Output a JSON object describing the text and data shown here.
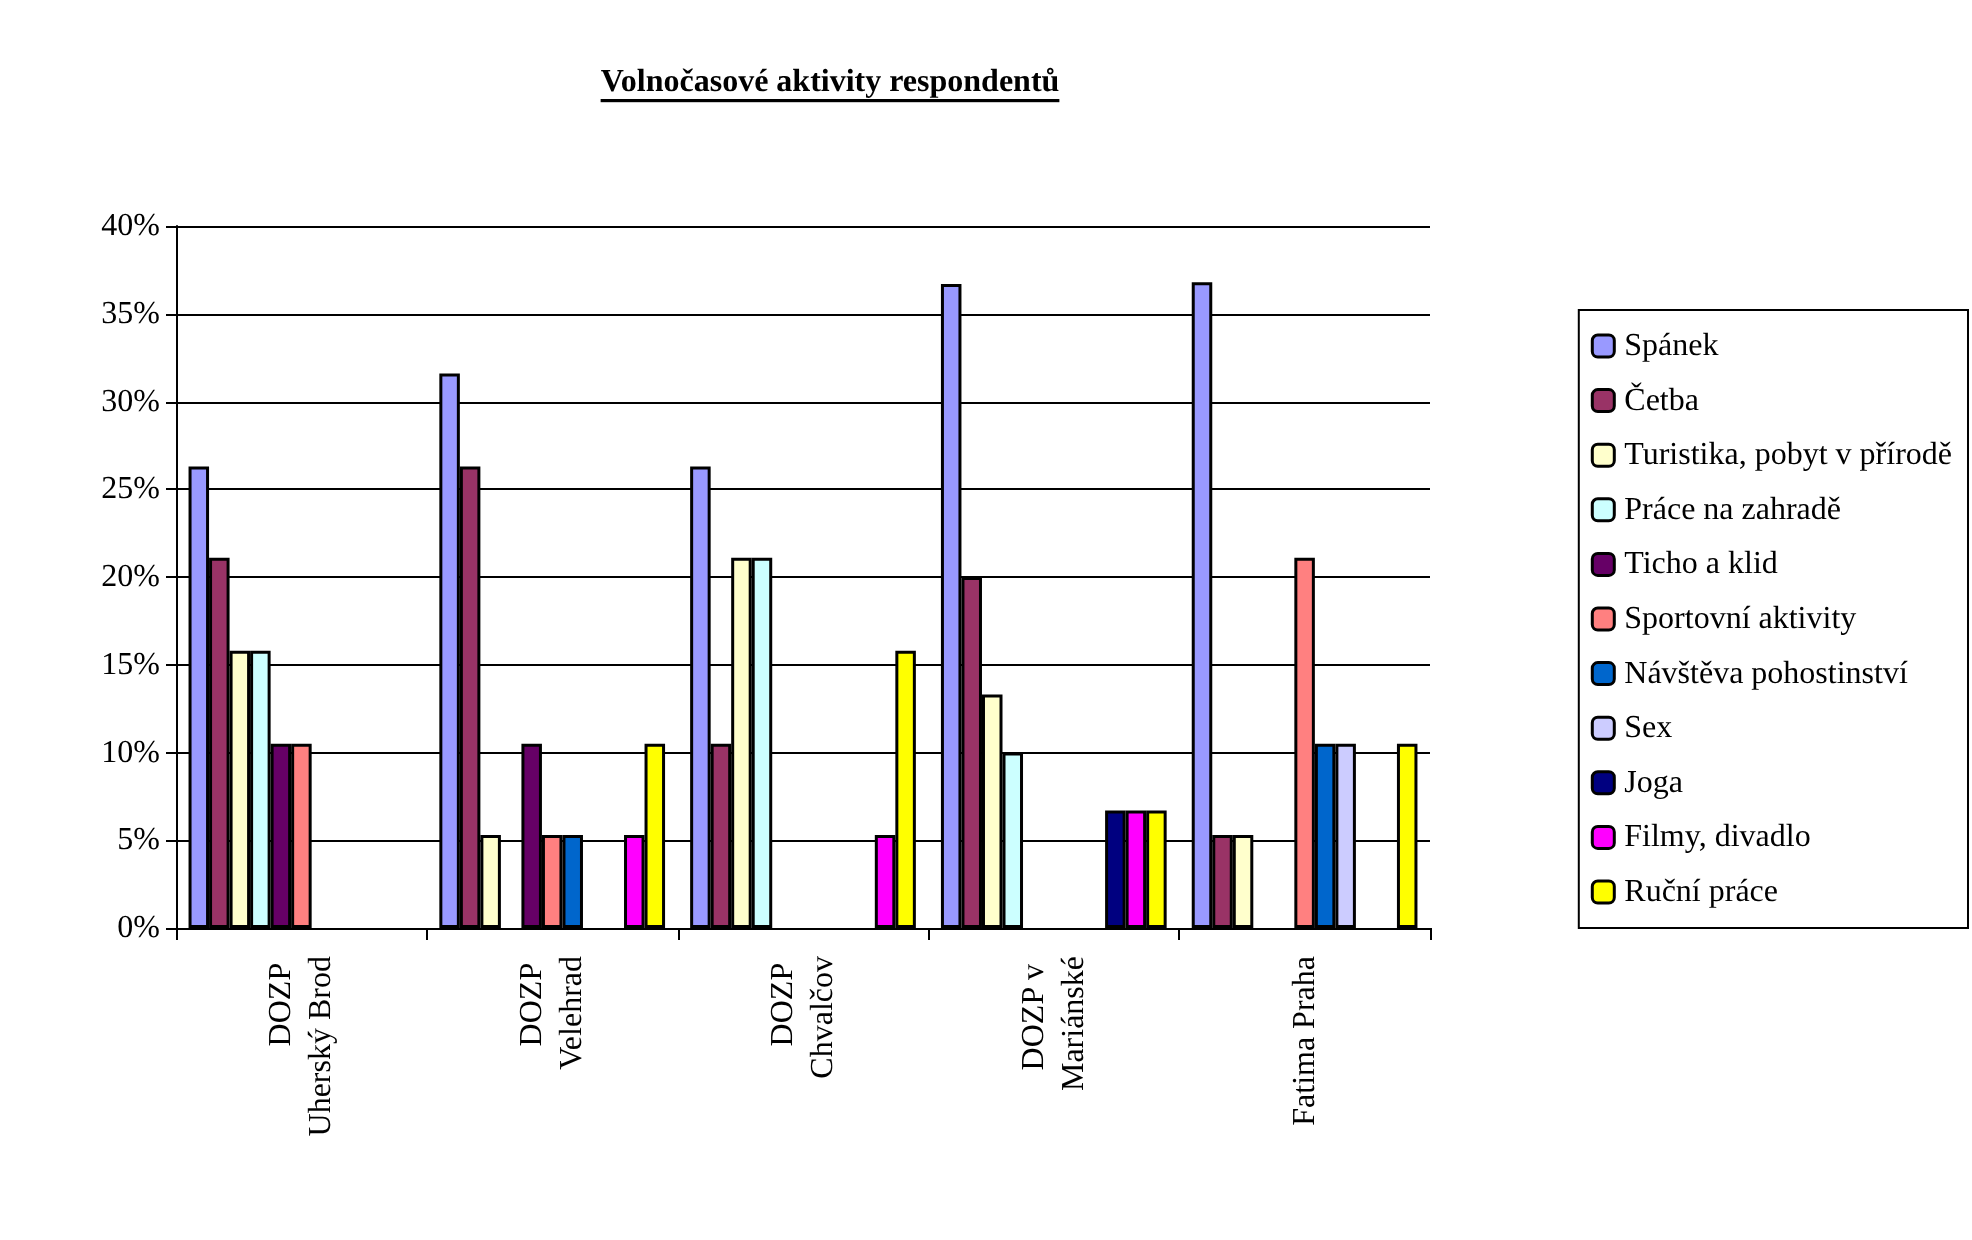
{
  "chart_data": {
    "type": "bar",
    "title": "Volnočasové aktivity respondentů",
    "categories": [
      "DOZP Uherský Brod",
      "DOZP Velehrad",
      "DOZP Chvalčov",
      "DOZP v Mariánské",
      "Fatima Praha"
    ],
    "series": [
      {
        "name": "Spánek",
        "color": "#9999ff",
        "values": [
          26.3,
          31.6,
          26.3,
          36.7,
          36.8
        ]
      },
      {
        "name": "Četba",
        "color": "#993366",
        "values": [
          21.1,
          26.3,
          10.5,
          20,
          5.3
        ]
      },
      {
        "name": "Turistika, pobyt v přírodě",
        "color": "#ffffcc",
        "values": [
          15.8,
          5.3,
          21.1,
          13.3,
          5.3
        ]
      },
      {
        "name": "Práce na zahradě",
        "color": "#ccffff",
        "values": [
          15.8,
          null,
          21.1,
          10,
          null
        ]
      },
      {
        "name": "Ticho a klid",
        "color": "#660066",
        "values": [
          10.5,
          10.5,
          null,
          null,
          null
        ]
      },
      {
        "name": "Sportovní aktivity",
        "color": "#ff8080",
        "values": [
          10.5,
          5.3,
          null,
          null,
          21.1
        ]
      },
      {
        "name": "Návštěva pohostinství",
        "color": "#0066cc",
        "values": [
          null,
          5.3,
          null,
          null,
          10.5
        ]
      },
      {
        "name": "Sex",
        "color": "#ccccff",
        "values": [
          null,
          null,
          null,
          null,
          10.5
        ]
      },
      {
        "name": "Joga",
        "color": "#000080",
        "values": [
          null,
          null,
          null,
          6.7,
          null
        ]
      },
      {
        "name": "Filmy, divadlo",
        "color": "#ff00ff",
        "values": [
          null,
          5.3,
          5.3,
          6.7,
          null
        ]
      },
      {
        "name": "Ruční práce",
        "color": "#ffff00",
        "values": [
          null,
          10.5,
          15.8,
          6.7,
          10.5
        ]
      }
    ],
    "ylim": [
      0,
      40
    ],
    "yticks": [
      {
        "value": 0,
        "label": "0%"
      },
      {
        "value": 5,
        "label": "5%"
      },
      {
        "value": 10,
        "label": "10%"
      },
      {
        "value": 15,
        "label": "15%"
      },
      {
        "value": 20,
        "label": "20%"
      },
      {
        "value": 25,
        "label": "25%"
      },
      {
        "value": 30,
        "label": "30%"
      },
      {
        "value": 35,
        "label": "35%"
      },
      {
        "value": 40,
        "label": "40%"
      }
    ],
    "grid": "y",
    "legend": "right"
  }
}
